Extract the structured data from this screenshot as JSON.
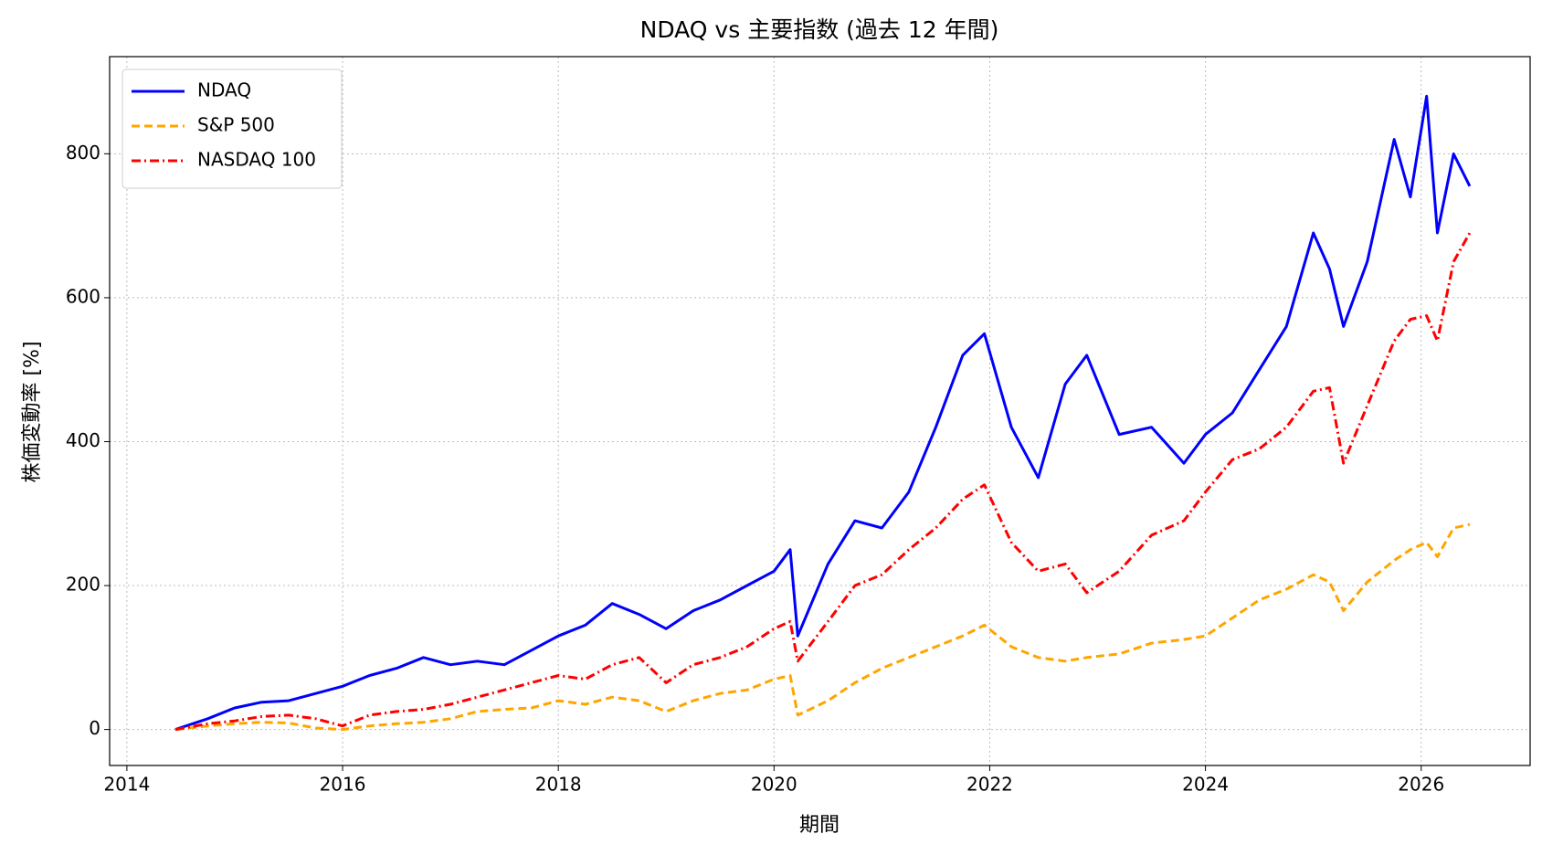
{
  "chart_data": {
    "type": "line",
    "title": "NDAQ vs 主要指数 (過去 12 年間)",
    "x_label": "期間",
    "y_label": "株価変動率 [%]",
    "x": [
      2014.45,
      2014.75,
      2015.0,
      2015.25,
      2015.5,
      2015.75,
      2016.0,
      2016.25,
      2016.5,
      2016.75,
      2017.0,
      2017.25,
      2017.5,
      2017.75,
      2018.0,
      2018.25,
      2018.5,
      2018.75,
      2019.0,
      2019.25,
      2019.5,
      2019.75,
      2020.0,
      2020.15,
      2020.22,
      2020.5,
      2020.75,
      2021.0,
      2021.25,
      2021.5,
      2021.75,
      2021.95,
      2022.2,
      2022.45,
      2022.7,
      2022.9,
      2023.2,
      2023.5,
      2023.8,
      2024.0,
      2024.25,
      2024.5,
      2024.75,
      2025.0,
      2025.15,
      2025.28,
      2025.5,
      2025.75,
      2025.9,
      2026.05,
      2026.15,
      2026.3,
      2026.45
    ],
    "series": [
      {
        "name": "NDAQ",
        "color": "#0000ff",
        "dash": "solid",
        "values": [
          0,
          15,
          30,
          38,
          40,
          50,
          60,
          75,
          85,
          100,
          90,
          95,
          90,
          110,
          130,
          145,
          175,
          160,
          140,
          165,
          180,
          200,
          220,
          250,
          130,
          230,
          290,
          280,
          330,
          420,
          520,
          550,
          420,
          350,
          480,
          520,
          410,
          420,
          370,
          410,
          440,
          500,
          560,
          690,
          640,
          560,
          650,
          820,
          740,
          880,
          690,
          800,
          755
        ]
      },
      {
        "name": "S&P 500",
        "color": "#ffa500",
        "dash": "dashed",
        "values": [
          0,
          5,
          8,
          10,
          9,
          2,
          0,
          5,
          8,
          10,
          15,
          25,
          28,
          30,
          40,
          35,
          45,
          40,
          25,
          40,
          50,
          55,
          70,
          75,
          20,
          40,
          65,
          85,
          100,
          115,
          130,
          145,
          115,
          100,
          95,
          100,
          105,
          120,
          125,
          130,
          155,
          180,
          195,
          215,
          205,
          165,
          205,
          235,
          250,
          260,
          240,
          280,
          285
        ]
      },
      {
        "name": "NASDAQ 100",
        "color": "#ff0000",
        "dash": "dashdot",
        "values": [
          0,
          8,
          12,
          18,
          20,
          15,
          5,
          20,
          25,
          28,
          35,
          45,
          55,
          65,
          75,
          70,
          90,
          100,
          65,
          90,
          100,
          115,
          140,
          150,
          95,
          150,
          200,
          215,
          250,
          280,
          320,
          340,
          260,
          220,
          230,
          190,
          220,
          270,
          290,
          330,
          375,
          390,
          420,
          470,
          475,
          370,
          450,
          540,
          570,
          575,
          540,
          650,
          690
        ]
      }
    ],
    "xlim": [
      2013.84,
      2027.01
    ],
    "xticks": [
      2014,
      2016,
      2018,
      2020,
      2022,
      2024,
      2026
    ],
    "ylim": [
      -50,
      935
    ],
    "yticks": [
      0,
      200,
      400,
      600,
      800
    ],
    "grid": true,
    "legend": "upper left"
  }
}
